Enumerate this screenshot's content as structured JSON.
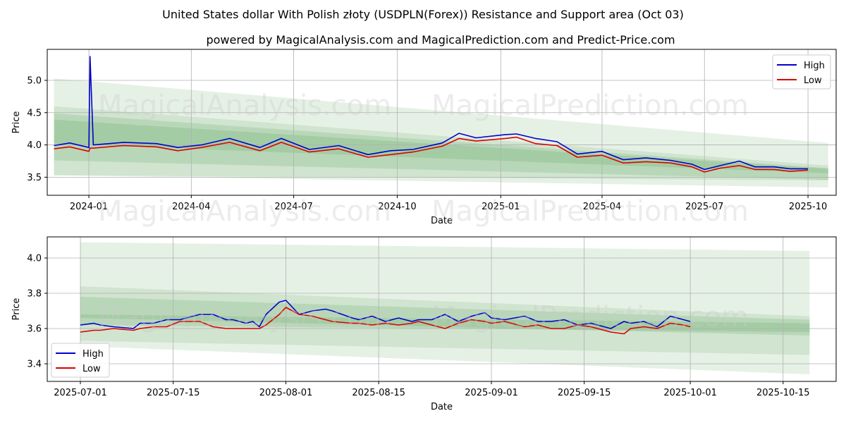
{
  "title": "United States dollar With Polish złoty (USDPLN(Forex)) Resistance and Support area (Oct 03)",
  "subtitle": "powered by MagicalAnalysis.com and MagicalPrediction.com and Predict-Price.com",
  "watermarks": [
    "MagicalAnalysis.com",
    "MagicalPrediction.com"
  ],
  "colors": {
    "high": "#0000cc",
    "low": "#dd0000",
    "band": "#2e8b2e",
    "grid": "#b0b0b0"
  },
  "chart_data": [
    {
      "type": "line",
      "xlabel": "Date",
      "ylabel": "Price",
      "xlim": [
        "2023-11-25",
        "2025-10-26"
      ],
      "ylim": [
        3.22,
        5.48
      ],
      "x_ticks": [
        "2024-01",
        "2024-04",
        "2024-07",
        "2024-10",
        "2025-01",
        "2025-04",
        "2025-07",
        "2025-10"
      ],
      "x_tick_dates": [
        "2024-01-01",
        "2024-04-01",
        "2024-07-01",
        "2024-10-01",
        "2025-01-01",
        "2025-04-01",
        "2025-07-01",
        "2025-10-01"
      ],
      "y_ticks": [
        3.5,
        4.0,
        4.5,
        5.0
      ],
      "legend": {
        "position": "top-right",
        "entries": [
          "High",
          "Low"
        ]
      },
      "bands": [
        {
          "x": [
            "2023-12-01",
            "2025-10-19"
          ],
          "upper": [
            5.03,
            4.03
          ],
          "lower": [
            3.53,
            3.34
          ],
          "opacity": 0.12
        },
        {
          "x": [
            "2023-12-01",
            "2025-10-19"
          ],
          "upper": [
            4.6,
            3.68
          ],
          "lower": [
            3.53,
            3.45
          ],
          "opacity": 0.12
        },
        {
          "x": [
            "2023-12-01",
            "2025-10-19"
          ],
          "upper": [
            4.49,
            3.64
          ],
          "lower": [
            3.76,
            3.46
          ],
          "opacity": 0.14
        },
        {
          "x": [
            "2023-12-01",
            "2025-10-19"
          ],
          "upper": [
            4.39,
            3.63
          ],
          "lower": [
            4.02,
            3.56
          ],
          "opacity": 0.14
        }
      ],
      "series": [
        {
          "name": "High",
          "x": [
            "2023-12-01",
            "2023-12-15",
            "2024-01-01",
            "2024-01-02",
            "2024-01-05",
            "2024-02-01",
            "2024-03-01",
            "2024-03-20",
            "2024-04-10",
            "2024-05-05",
            "2024-06-01",
            "2024-06-20",
            "2024-07-15",
            "2024-08-10",
            "2024-09-05",
            "2024-09-25",
            "2024-10-15",
            "2024-11-10",
            "2024-11-25",
            "2024-12-10",
            "2025-01-05",
            "2025-01-15",
            "2025-02-01",
            "2025-02-20",
            "2025-03-10",
            "2025-04-01",
            "2025-04-20",
            "2025-05-10",
            "2025-06-01",
            "2025-06-20",
            "2025-07-01",
            "2025-07-15",
            "2025-08-01",
            "2025-08-15",
            "2025-09-01",
            "2025-09-15",
            "2025-10-01"
          ],
          "values": [
            3.99,
            4.03,
            3.96,
            5.37,
            4.0,
            4.04,
            4.02,
            3.96,
            4.0,
            4.1,
            3.96,
            4.1,
            3.93,
            3.99,
            3.85,
            3.91,
            3.93,
            4.03,
            4.18,
            4.11,
            4.16,
            4.17,
            4.1,
            4.05,
            3.86,
            3.9,
            3.77,
            3.8,
            3.76,
            3.7,
            3.62,
            3.68,
            3.75,
            3.66,
            3.66,
            3.63,
            3.63
          ]
        },
        {
          "name": "Low",
          "x": [
            "2023-12-01",
            "2023-12-15",
            "2024-01-01",
            "2024-01-02",
            "2024-01-05",
            "2024-02-01",
            "2024-03-01",
            "2024-03-20",
            "2024-04-10",
            "2024-05-05",
            "2024-06-01",
            "2024-06-20",
            "2024-07-15",
            "2024-08-10",
            "2024-09-05",
            "2024-09-25",
            "2024-10-15",
            "2024-11-10",
            "2024-11-25",
            "2024-12-10",
            "2025-01-05",
            "2025-01-15",
            "2025-02-01",
            "2025-02-20",
            "2025-03-10",
            "2025-04-01",
            "2025-04-20",
            "2025-05-10",
            "2025-06-01",
            "2025-06-20",
            "2025-07-01",
            "2025-07-15",
            "2025-08-01",
            "2025-08-15",
            "2025-09-01",
            "2025-09-15",
            "2025-10-01"
          ],
          "values": [
            3.94,
            3.97,
            3.9,
            3.95,
            3.95,
            3.99,
            3.97,
            3.91,
            3.96,
            4.04,
            3.91,
            4.04,
            3.89,
            3.94,
            3.81,
            3.85,
            3.89,
            3.98,
            4.1,
            4.06,
            4.1,
            4.12,
            4.02,
            3.99,
            3.81,
            3.84,
            3.72,
            3.74,
            3.72,
            3.66,
            3.58,
            3.64,
            3.68,
            3.62,
            3.62,
            3.59,
            3.61
          ]
        }
      ]
    },
    {
      "type": "line",
      "xlabel": "Date",
      "ylabel": "Price",
      "xlim": [
        "2025-06-26",
        "2025-10-23"
      ],
      "ylim": [
        3.3,
        4.12
      ],
      "x_ticks": [
        "2025-07-01",
        "2025-07-15",
        "2025-08-01",
        "2025-08-15",
        "2025-09-01",
        "2025-09-15",
        "2025-10-01",
        "2025-10-15"
      ],
      "y_ticks": [
        3.4,
        3.6,
        3.8,
        4.0
      ],
      "legend": {
        "position": "bottom-left",
        "entries": [
          "High",
          "Low"
        ]
      },
      "bands": [
        {
          "x": [
            "2025-07-01",
            "2025-10-19"
          ],
          "upper": [
            4.09,
            4.04
          ],
          "lower": [
            3.5,
            3.34
          ],
          "opacity": 0.12
        },
        {
          "x": [
            "2025-07-01",
            "2025-10-19"
          ],
          "upper": [
            3.84,
            3.67
          ],
          "lower": [
            3.53,
            3.45
          ],
          "opacity": 0.12
        },
        {
          "x": [
            "2025-07-01",
            "2025-10-19"
          ],
          "upper": [
            3.78,
            3.65
          ],
          "lower": [
            3.66,
            3.56
          ],
          "opacity": 0.14
        },
        {
          "x": [
            "2025-07-01",
            "2025-10-19"
          ],
          "upper": [
            3.68,
            3.63
          ],
          "lower": [
            3.62,
            3.58
          ],
          "opacity": 0.14
        }
      ],
      "series": [
        {
          "name": "High",
          "x": [
            "2025-07-01",
            "2025-07-03",
            "2025-07-04",
            "2025-07-06",
            "2025-07-09",
            "2025-07-10",
            "2025-07-12",
            "2025-07-14",
            "2025-07-16",
            "2025-07-17",
            "2025-07-19",
            "2025-07-21",
            "2025-07-23",
            "2025-07-24",
            "2025-07-26",
            "2025-07-27",
            "2025-07-28",
            "2025-07-29",
            "2025-07-31",
            "2025-08-01",
            "2025-08-03",
            "2025-08-05",
            "2025-08-07",
            "2025-08-08",
            "2025-08-11",
            "2025-08-12",
            "2025-08-14",
            "2025-08-16",
            "2025-08-18",
            "2025-08-20",
            "2025-08-21",
            "2025-08-23",
            "2025-08-25",
            "2025-08-27",
            "2025-08-29",
            "2025-08-31",
            "2025-09-01",
            "2025-09-03",
            "2025-09-06",
            "2025-09-08",
            "2025-09-10",
            "2025-09-12",
            "2025-09-14",
            "2025-09-16",
            "2025-09-17",
            "2025-09-19",
            "2025-09-21",
            "2025-09-22",
            "2025-09-24",
            "2025-09-26",
            "2025-09-28",
            "2025-09-30",
            "2025-10-01"
          ],
          "values": [
            3.62,
            3.63,
            3.62,
            3.61,
            3.6,
            3.63,
            3.63,
            3.65,
            3.65,
            3.66,
            3.68,
            3.68,
            3.65,
            3.65,
            3.63,
            3.64,
            3.61,
            3.68,
            3.75,
            3.76,
            3.68,
            3.7,
            3.71,
            3.7,
            3.66,
            3.65,
            3.67,
            3.64,
            3.66,
            3.64,
            3.65,
            3.65,
            3.68,
            3.64,
            3.67,
            3.69,
            3.66,
            3.65,
            3.67,
            3.64,
            3.64,
            3.65,
            3.62,
            3.63,
            3.62,
            3.6,
            3.64,
            3.63,
            3.64,
            3.61,
            3.67,
            3.65,
            3.64
          ]
        },
        {
          "name": "Low",
          "x": [
            "2025-07-01",
            "2025-07-03",
            "2025-07-04",
            "2025-07-06",
            "2025-07-09",
            "2025-07-10",
            "2025-07-12",
            "2025-07-14",
            "2025-07-16",
            "2025-07-17",
            "2025-07-19",
            "2025-07-21",
            "2025-07-23",
            "2025-07-24",
            "2025-07-26",
            "2025-07-27",
            "2025-07-28",
            "2025-07-29",
            "2025-07-31",
            "2025-08-01",
            "2025-08-03",
            "2025-08-05",
            "2025-08-07",
            "2025-08-08",
            "2025-08-11",
            "2025-08-12",
            "2025-08-14",
            "2025-08-16",
            "2025-08-18",
            "2025-08-20",
            "2025-08-21",
            "2025-08-23",
            "2025-08-25",
            "2025-08-27",
            "2025-08-29",
            "2025-08-31",
            "2025-09-01",
            "2025-09-03",
            "2025-09-06",
            "2025-09-08",
            "2025-09-10",
            "2025-09-12",
            "2025-09-14",
            "2025-09-16",
            "2025-09-17",
            "2025-09-19",
            "2025-09-21",
            "2025-09-22",
            "2025-09-24",
            "2025-09-26",
            "2025-09-28",
            "2025-09-30",
            "2025-10-01"
          ],
          "values": [
            3.58,
            3.59,
            3.59,
            3.6,
            3.59,
            3.6,
            3.61,
            3.61,
            3.64,
            3.64,
            3.64,
            3.61,
            3.6,
            3.6,
            3.6,
            3.6,
            3.6,
            3.62,
            3.68,
            3.72,
            3.68,
            3.67,
            3.65,
            3.64,
            3.63,
            3.63,
            3.62,
            3.63,
            3.62,
            3.63,
            3.64,
            3.62,
            3.6,
            3.63,
            3.65,
            3.64,
            3.63,
            3.64,
            3.61,
            3.62,
            3.6,
            3.6,
            3.62,
            3.61,
            3.6,
            3.58,
            3.57,
            3.6,
            3.61,
            3.6,
            3.63,
            3.62,
            3.61
          ]
        }
      ]
    }
  ]
}
